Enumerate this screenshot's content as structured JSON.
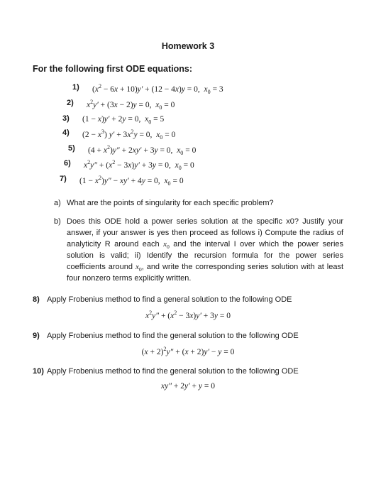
{
  "title": "Homework 3",
  "subtitle": "For the following first ODE equations:",
  "equations": [
    {
      "num": "1)",
      "html": "<span class='n'>(</span>x<sup>2</sup> <span class='n'>− 6</span>x <span class='n'>+ 10)</span>y′ <span class='n'>+ (12 − 4</span>x<span class='n'>)</span>y <span class='n'>= 0,&nbsp; </span>x<sub>0</sub> <span class='n'>= 3</span>"
    },
    {
      "num": "2)",
      "html": "x<sup>2</sup>y′ <span class='n'>+ (3</span>x <span class='n'>− 2)</span>y <span class='n'>= 0,&nbsp; </span>x<sub>0</sub> <span class='n'>= 0</span>"
    },
    {
      "num": "3)",
      "html": "<span class='n'>(1 − </span>x<span class='n'>)</span>y′ <span class='n'>+ 2</span>y <span class='n'>= 0,&nbsp; </span>x<sub>0</sub> <span class='n'>= 5</span>"
    },
    {
      "num": "4)",
      "html": "<span class='n'>(2 − </span>x<sup>3</sup><span class='n'>) </span>y′ <span class='n'>+ 3</span>x<sup>2</sup>y <span class='n'>= 0,&nbsp; </span>x<sub>0</sub> <span class='n'>= 0</span>"
    },
    {
      "num": "5)",
      "html": "<span class='n'>(4 + </span>x<sup>2</sup><span class='n'>)</span>y″ <span class='n'>+ 2</span>xy′ <span class='n'>+ 3</span>y <span class='n'>= 0,&nbsp; </span>x<sub>0</sub> <span class='n'>= 0</span>"
    },
    {
      "num": "6)",
      "html": "x<sup>2</sup>y″ <span class='n'>+ (</span>x<sup>2</sup> <span class='n'>− 3</span>x<span class='n'>)</span>y′ <span class='n'>+ 3</span>y <span class='n'>= 0,&nbsp; </span>x<sub>0</sub> <span class='n'>= 0</span>"
    },
    {
      "num": "7)",
      "html": "<span class='n'>(1 − </span>x<sup>2</sup><span class='n'>)</span>y″ <span class='n'>− </span>xy′ <span class='n'>+ 4</span>y <span class='n'>= 0,&nbsp; </span>x<sub>0</sub> <span class='n'>= 0</span>"
    }
  ],
  "parts": [
    {
      "label": "a)",
      "text": "What are the points of singularity for each specific problem?"
    },
    {
      "label": "b)",
      "html": "Does this ODE hold a power series solution at the specific x0? Justify your answer, if your answer is yes then proceed as follows i) Compute the radius of analyticity R around each <span class='ser'>x<sub>0</sub></span> and the interval I over which the power series solution is valid; ii) Identify the recursion formula for the power series coefficients around <span class='ser'>x<sub>0</sub></span>, and write the corresponding series solution with at least four nonzero terms explicitly written."
    }
  ],
  "problems": [
    {
      "num": "8)",
      "text": "Apply Frobenius method to find a general solution to the following ODE",
      "eq": "x<sup>2</sup>y″ <span class='n'>+ (</span>x<sup>2</sup> <span class='n'>− 3</span>x<span class='n'>)</span>y′ <span class='n'>+ 3</span>y <span class='n'>= 0</span>"
    },
    {
      "num": "9)",
      "text": "Apply Frobenius method to find the general solution to the following ODE",
      "eq": "<span class='n'>(</span>x <span class='n'>+ 2)</span><sup>2</sup>y″ <span class='n'>+ (</span>x <span class='n'>+ 2)</span>y′ <span class='n'>− </span>y <span class='n'>= 0</span>"
    },
    {
      "num": "10)",
      "text": "Apply Frobenius method to find the general solution to the following ODE",
      "eq": "xy″ <span class='n'>+ 2</span>y′ <span class='n'>+ </span>y <span class='n'>= 0</span>"
    }
  ]
}
